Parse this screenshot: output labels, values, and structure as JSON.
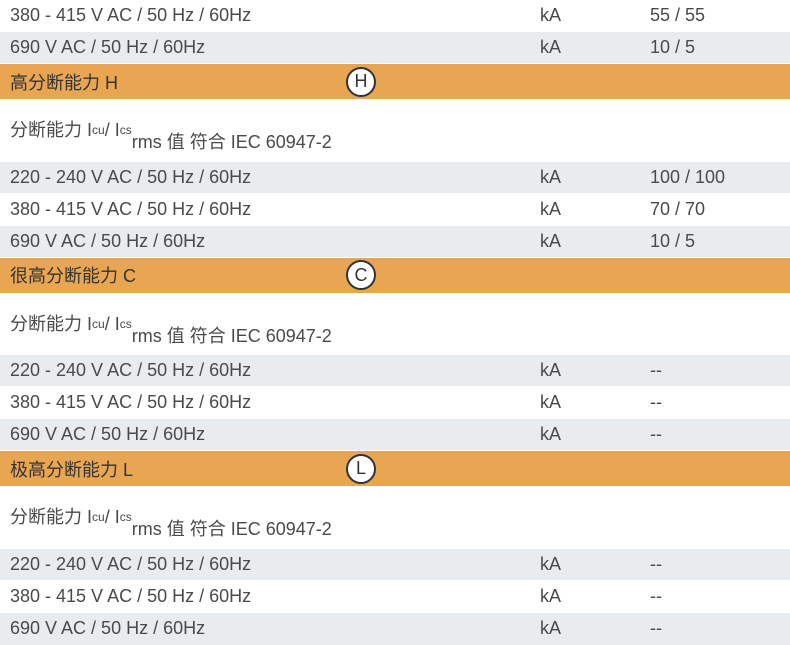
{
  "topRows": [
    {
      "label": "380 - 415 V AC / 50 Hz / 60Hz",
      "unit": "kA",
      "value": "55 / 55",
      "bg": "white"
    },
    {
      "label": "690 V AC / 50 Hz / 60Hz",
      "unit": "kA",
      "value": "10 / 5",
      "bg": "light"
    }
  ],
  "sections": [
    {
      "title": "高分断能力 H",
      "badge": "H",
      "subLine1": "分断能力 I",
      "subSub1": "cu",
      "subMid": " / I",
      "subSub2": "cs",
      "subLine2": "rms 值 符合 IEC 60947-2",
      "rows": [
        {
          "label": "220 - 240 V AC / 50 Hz / 60Hz",
          "unit": "kA",
          "value": "100 / 100",
          "bg": "light"
        },
        {
          "label": "380 - 415 V AC / 50 Hz / 60Hz",
          "unit": "kA",
          "value": "70 / 70",
          "bg": "white"
        },
        {
          "label": "690 V AC / 50 Hz / 60Hz",
          "unit": "kA",
          "value": "10 / 5",
          "bg": "light"
        }
      ]
    },
    {
      "title": "很高分断能力 C",
      "badge": "C",
      "subLine1": "分断能力 I",
      "subSub1": "cu",
      "subMid": " / I",
      "subSub2": "cs",
      "subLine2": "rms 值 符合 IEC 60947-2",
      "rows": [
        {
          "label": "220 - 240 V AC / 50 Hz / 60Hz",
          "unit": "kA",
          "value": "--",
          "bg": "light"
        },
        {
          "label": "380 - 415 V AC / 50 Hz / 60Hz",
          "unit": "kA",
          "value": "--",
          "bg": "white"
        },
        {
          "label": "690 V AC / 50 Hz / 60Hz",
          "unit": "kA",
          "value": "--",
          "bg": "light"
        }
      ]
    },
    {
      "title": "极高分断能力 L",
      "badge": "L",
      "subLine1": "分断能力 I",
      "subSub1": "cu",
      "subMid": " / I",
      "subSub2": "cs",
      "subLine2": "rms 值 符合 IEC 60947-2",
      "rows": [
        {
          "label": "220 - 240 V AC / 50 Hz / 60Hz",
          "unit": "kA",
          "value": "--",
          "bg": "light"
        },
        {
          "label": "380 - 415 V AC / 50 Hz / 60Hz",
          "unit": "kA",
          "value": "--",
          "bg": "white"
        },
        {
          "label": "690 V AC / 50 Hz / 60Hz",
          "unit": "kA",
          "value": "--",
          "bg": "light"
        }
      ]
    }
  ],
  "colors": {
    "headerBg": "#e8a653",
    "lightRow": "#e8ecee",
    "whiteRow": "#ffffff",
    "text": "#4a4a4a"
  }
}
